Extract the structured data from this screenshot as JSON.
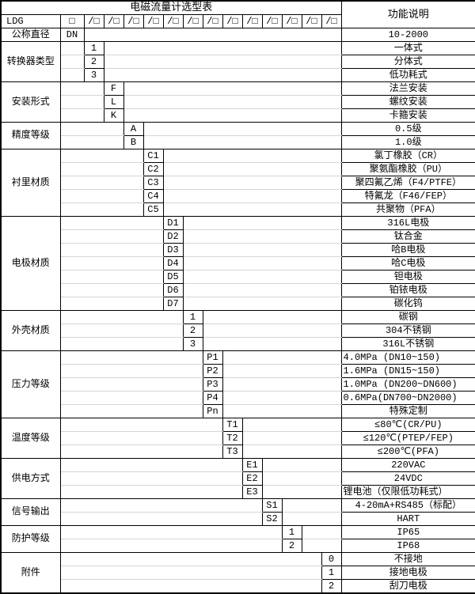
{
  "title": "电磁流量计选型表",
  "function_header": "功能说明",
  "model": {
    "prefix": "LDG",
    "first_box": "□",
    "slot": "/□",
    "slot_count": 13
  },
  "colors": {
    "border": "#000000",
    "gridline": "#d5d5d5",
    "background": "#ffffff"
  },
  "categories": [
    {
      "label": "公称直径",
      "code_col": 0,
      "options": [
        {
          "code": "DN",
          "desc": "10-2000"
        }
      ]
    },
    {
      "label": "转换器类型",
      "code_col": 1,
      "options": [
        {
          "code": "1",
          "desc": "一体式"
        },
        {
          "code": "2",
          "desc": "分体式"
        },
        {
          "code": "3",
          "desc": "低功耗式"
        }
      ]
    },
    {
      "label": "安装形式",
      "code_col": 2,
      "options": [
        {
          "code": "F",
          "desc": "法兰安装"
        },
        {
          "code": "L",
          "desc": "螺纹安装"
        },
        {
          "code": "K",
          "desc": "卡箍安装"
        }
      ]
    },
    {
      "label": "精度等级",
      "code_col": 3,
      "options": [
        {
          "code": "A",
          "desc": "0.5级"
        },
        {
          "code": "B",
          "desc": "1.0级"
        }
      ]
    },
    {
      "label": "衬里材质",
      "code_col": 4,
      "options": [
        {
          "code": "C1",
          "desc": "氯丁橡胶（CR）"
        },
        {
          "code": "C2",
          "desc": "聚氨酯橡胶（PU）"
        },
        {
          "code": "C3",
          "desc": "聚四氟乙烯（F4/PTFE）"
        },
        {
          "code": "C4",
          "desc": "特氟龙（F46/FEP）"
        },
        {
          "code": "C5",
          "desc": "共聚物（PFA）"
        }
      ]
    },
    {
      "label": "电极材质",
      "code_col": 5,
      "options": [
        {
          "code": "D1",
          "desc": "316L电极"
        },
        {
          "code": "D2",
          "desc": "钛合金"
        },
        {
          "code": "D3",
          "desc": "哈B电极"
        },
        {
          "code": "D4",
          "desc": "哈C电极"
        },
        {
          "code": "D5",
          "desc": "钽电极"
        },
        {
          "code": "D6",
          "desc": "铂铱电极"
        },
        {
          "code": "D7",
          "desc": "碳化钨"
        }
      ]
    },
    {
      "label": "外壳材质",
      "code_col": 6,
      "options": [
        {
          "code": "1",
          "desc": "碳钢"
        },
        {
          "code": "2",
          "desc": "304不锈钢"
        },
        {
          "code": "3",
          "desc": "316L不锈钢"
        }
      ]
    },
    {
      "label": "压力等级",
      "code_col": 7,
      "options": [
        {
          "code": "P1",
          "desc": "4.0MPa (DN10~150)",
          "align": "left"
        },
        {
          "code": "P2",
          "desc": "1.6MPa (DN15~150)",
          "align": "left"
        },
        {
          "code": "P3",
          "desc": "1.0MPa (DN200~DN600)",
          "align": "left"
        },
        {
          "code": "P4",
          "desc": "0.6MPa(DN700~DN2000)",
          "align": "left"
        },
        {
          "code": "Pn",
          "desc": "特殊定制"
        }
      ]
    },
    {
      "label": "温度等级",
      "code_col": 8,
      "options": [
        {
          "code": "T1",
          "desc": "≤80℃(CR/PU)"
        },
        {
          "code": "T2",
          "desc": "≤120℃(PTEP/FEP)"
        },
        {
          "code": "T3",
          "desc": "≤200℃(PFA)"
        }
      ]
    },
    {
      "label": "供电方式",
      "code_col": 9,
      "options": [
        {
          "code": "E1",
          "desc": "220VAC"
        },
        {
          "code": "E2",
          "desc": "24VDC"
        },
        {
          "code": "E3",
          "desc": "锂电池（仅限低功耗式）",
          "align": "left"
        }
      ]
    },
    {
      "label": "信号输出",
      "code_col": 10,
      "options": [
        {
          "code": "S1",
          "desc": "4-20mA+RS485（标配）"
        },
        {
          "code": "S2",
          "desc": "HART"
        }
      ]
    },
    {
      "label": "防护等级",
      "code_col": 11,
      "options": [
        {
          "code": "1",
          "desc": "IP65"
        },
        {
          "code": "2",
          "desc": "IP68"
        }
      ]
    },
    {
      "label": "附件",
      "code_col": 13,
      "options": [
        {
          "code": "0",
          "desc": "不接地"
        },
        {
          "code": "1",
          "desc": "接地电极"
        },
        {
          "code": "2",
          "desc": "刮刀电极"
        }
      ]
    }
  ]
}
